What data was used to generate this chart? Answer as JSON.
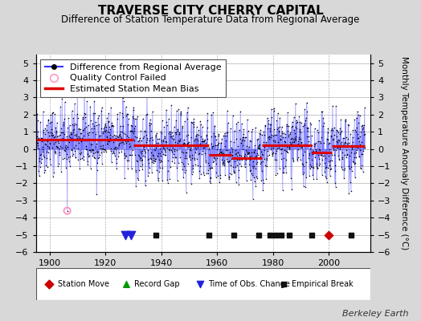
{
  "title": "TRAVERSE CITY CHERRY CAPITAL",
  "subtitle": "Difference of Station Temperature Data from Regional Average",
  "ylabel": "Monthly Temperature Anomaly Difference (°C)",
  "xlim": [
    1895,
    2015
  ],
  "ylim": [
    -6,
    5.5
  ],
  "yticks": [
    -6,
    -5,
    -4,
    -3,
    -2,
    -1,
    0,
    1,
    2,
    3,
    4,
    5
  ],
  "xticks": [
    1900,
    1920,
    1940,
    1960,
    1980,
    2000
  ],
  "bg_color": "#d8d8d8",
  "plot_bg_color": "#ffffff",
  "grid_color": "#b0b0b0",
  "line_color": "#3333ff",
  "dot_color": "#000000",
  "bias_color": "#dd0000",
  "qc_color": "#ff88bb",
  "seed": 42,
  "start_year": 1895,
  "end_year": 2013,
  "bias_segments": [
    {
      "start": 1895,
      "end": 1930,
      "value": 0.55
    },
    {
      "start": 1930,
      "end": 1957,
      "value": 0.2
    },
    {
      "start": 1957,
      "end": 1965,
      "value": -0.35
    },
    {
      "start": 1965,
      "end": 1976,
      "value": -0.55
    },
    {
      "start": 1976,
      "end": 1994,
      "value": 0.2
    },
    {
      "start": 1994,
      "end": 2001,
      "value": -0.2
    },
    {
      "start": 2001,
      "end": 2013,
      "value": 0.15
    }
  ],
  "obs_change_years": [
    1927,
    1929
  ],
  "empirical_break_years": [
    1938,
    1957,
    1966,
    1975,
    1979,
    1981,
    1983,
    1986,
    1994,
    2008
  ],
  "station_move_years": [
    2000
  ],
  "record_gap_years": [],
  "qc_fail_approx_x": [
    1906
  ],
  "qc_fail_approx_y": [
    -3.6
  ],
  "watermark": "Berkeley Earth",
  "title_fontsize": 11,
  "subtitle_fontsize": 8.5,
  "ylabel_fontsize": 7.5,
  "tick_fontsize": 8,
  "legend_fontsize": 8,
  "watermark_fontsize": 8
}
